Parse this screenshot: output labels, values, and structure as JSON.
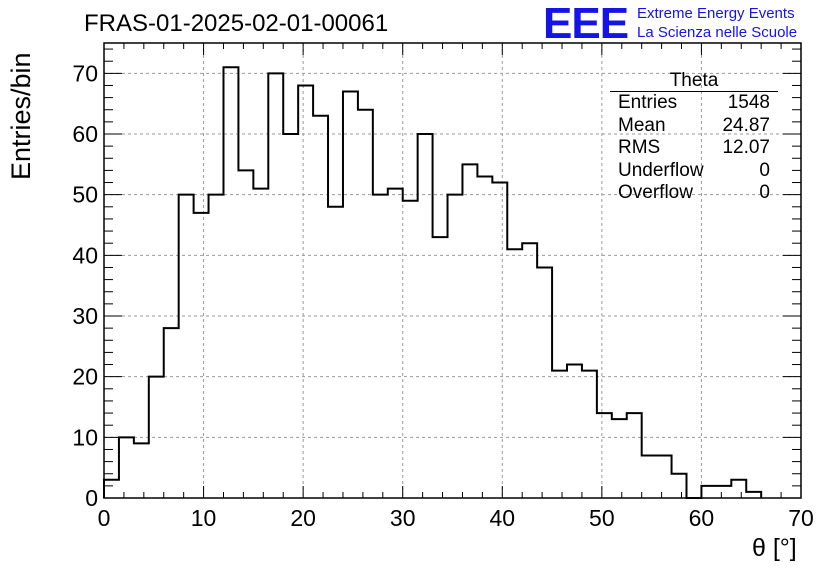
{
  "header": {
    "title": "FRAS-01-2025-02-01-00061",
    "logo_mark": "EEE",
    "logo_line1": "Extreme Energy Events",
    "logo_line2": "La Scienza nelle Scuole"
  },
  "colors": {
    "logo": "#1414e6",
    "histogram": "#000000",
    "grid": "#9a9a9a"
  },
  "stats_box": {
    "title": "Theta",
    "rows": [
      {
        "label": "Entries",
        "value": "1548"
      },
      {
        "label": "Mean",
        "value": "24.87"
      },
      {
        "label": "RMS",
        "value": "12.07"
      },
      {
        "label": "Underflow",
        "value": "0"
      },
      {
        "label": "Overflow",
        "value": "0"
      }
    ]
  },
  "chart_data": {
    "type": "bar",
    "style": "step-histogram",
    "xlabel": "θ [°]",
    "ylabel": "Entries/bin",
    "xlim": [
      0,
      70
    ],
    "ylim": [
      0,
      75
    ],
    "bin_width": 1.5,
    "bin_edges_start": 0,
    "values": [
      3,
      10,
      9,
      20,
      28,
      50,
      47,
      50,
      71,
      54,
      51,
      70,
      60,
      68,
      63,
      48,
      67,
      64,
      50,
      51,
      49,
      60,
      43,
      50,
      55,
      53,
      52,
      41,
      42,
      38,
      21,
      22,
      21,
      14,
      13,
      14,
      7,
      7,
      4,
      0,
      2,
      2,
      3,
      1
    ],
    "x_ticks": [
      0,
      10,
      20,
      30,
      40,
      50,
      60,
      70
    ],
    "y_ticks": [
      0,
      10,
      20,
      30,
      40,
      50,
      60,
      70
    ],
    "x_tick_labels": [
      "0",
      "10",
      "20",
      "30",
      "40",
      "50",
      "60",
      "70"
    ],
    "y_tick_labels": [
      "0",
      "10",
      "20",
      "30",
      "40",
      "50",
      "60",
      "70"
    ],
    "grid": true
  }
}
